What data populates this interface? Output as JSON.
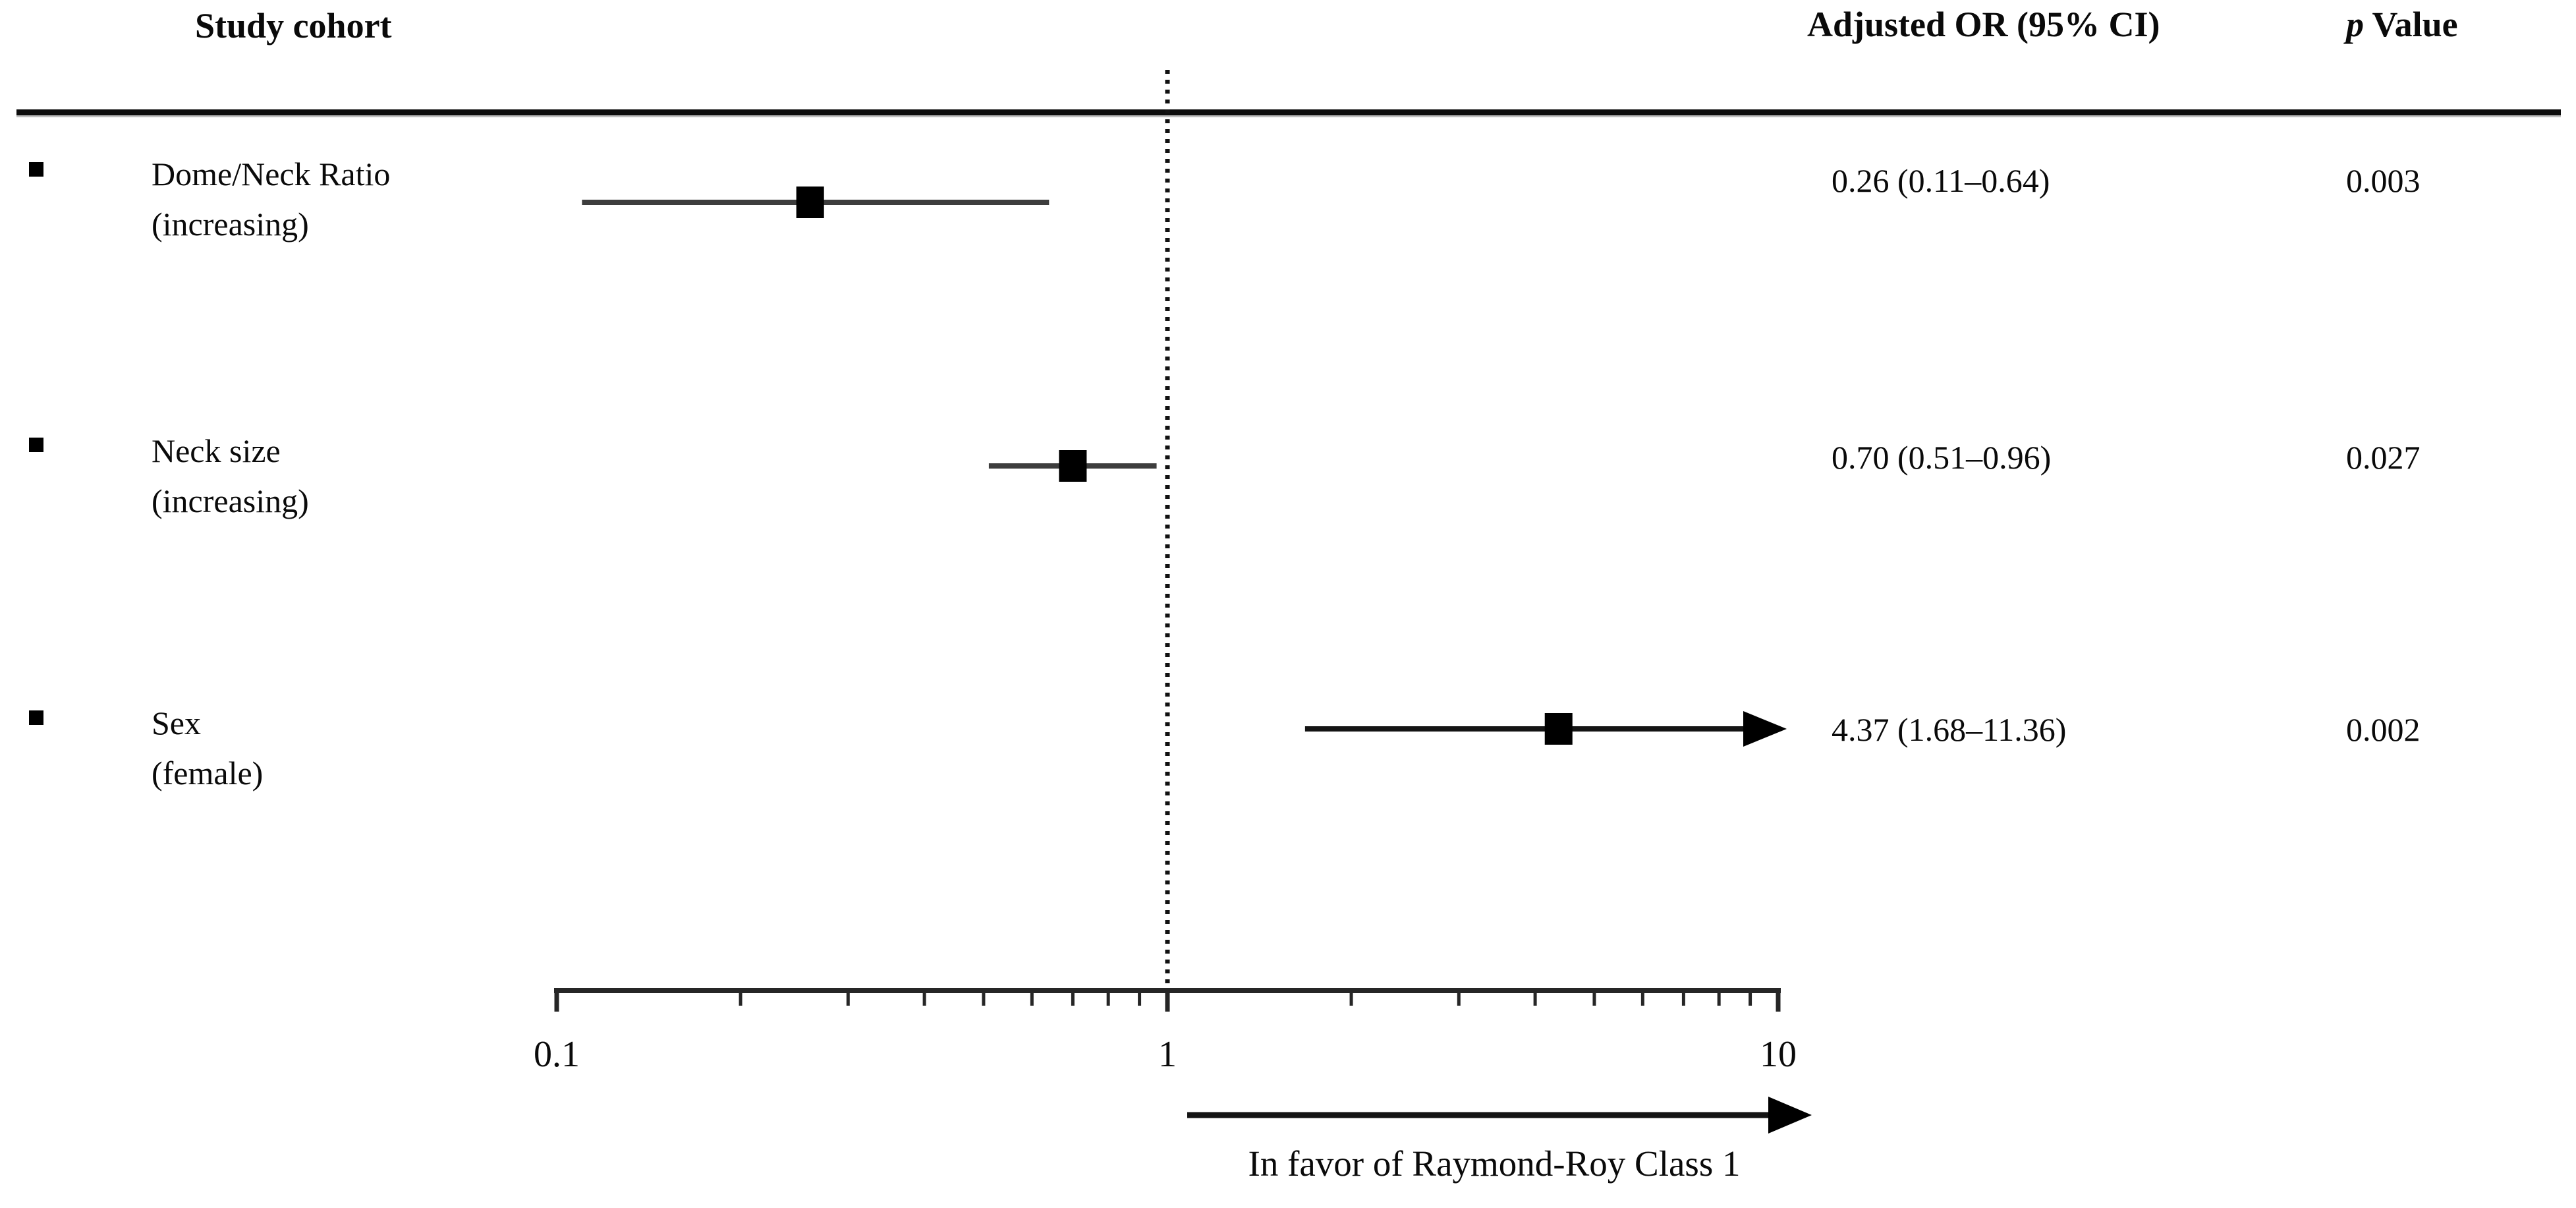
{
  "header": {
    "study_cohort": "Study cohort",
    "or_ci": "Adjusted OR (95% CI)",
    "p_italic": "p",
    "p_rest": " Value"
  },
  "chart_data": {
    "type": "forest",
    "xscale": "log",
    "xlim": [
      0.1,
      10
    ],
    "axis_ticks": [
      {
        "value": 0.1,
        "label": "0.1"
      },
      {
        "value": 1,
        "label": "1"
      },
      {
        "value": 10,
        "label": "10"
      }
    ],
    "minor_ticks": [
      0.2,
      0.3,
      0.4,
      0.5,
      0.6,
      0.7,
      0.8,
      0.9,
      2,
      3,
      4,
      5,
      6,
      7,
      8,
      9
    ],
    "reference_line": 1,
    "favors_label": "In favor of Raymond-Roy Class 1",
    "rows": [
      {
        "label_line1": "Dome/Neck Ratio",
        "label_line2": "(increasing)",
        "or": 0.26,
        "ci_low": 0.11,
        "ci_high": 0.64,
        "or_ci_text": "0.26 (0.11–0.64)",
        "p_text": "0.003",
        "ci_exceeds_axis": false
      },
      {
        "label_line1": "Neck size",
        "label_line2": "(increasing)",
        "or": 0.7,
        "ci_low": 0.51,
        "ci_high": 0.96,
        "or_ci_text": "0.70 (0.51–0.96)",
        "p_text": "0.027",
        "ci_exceeds_axis": false
      },
      {
        "label_line1": "Sex",
        "label_line2": "(female)",
        "or": 4.37,
        "ci_low": 1.68,
        "ci_high": 11.36,
        "or_ci_text": "4.37 (1.68–11.36)",
        "p_text": "0.002",
        "ci_exceeds_axis": true
      }
    ],
    "colors": {
      "marker": "#000000",
      "ci_line": "#3d3d3d",
      "axis": "#262626",
      "reference": "#111111",
      "text": "#0a0a0a"
    }
  }
}
